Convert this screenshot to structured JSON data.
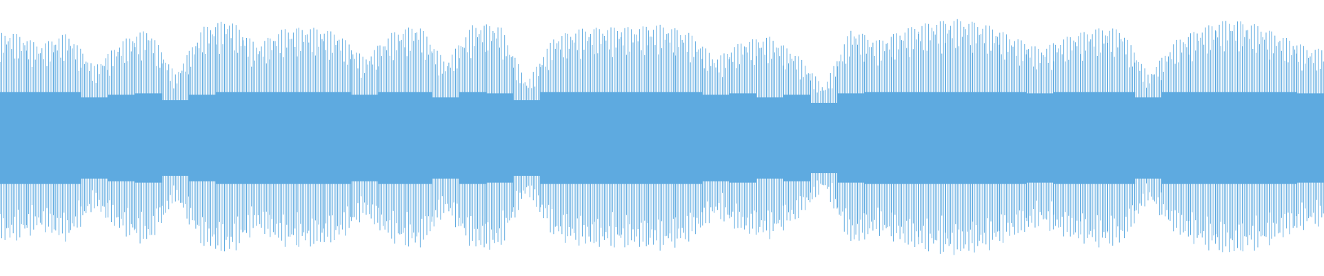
{
  "chart_data": {
    "type": "waveform",
    "color": "#5eaae0",
    "envelope": [
      0.78,
      0.69,
      0.78,
      0.53,
      0.72,
      0.81,
      0.47,
      0.82,
      0.88,
      0.69,
      0.81,
      0.82,
      0.78,
      0.59,
      0.78,
      0.84,
      0.56,
      0.84,
      0.84,
      0.41,
      0.75,
      0.81,
      0.82,
      0.82,
      0.84,
      0.78,
      0.59,
      0.72,
      0.75,
      0.62,
      0.38,
      0.81,
      0.72,
      0.81,
      0.86,
      0.88,
      0.84,
      0.75,
      0.66,
      0.75,
      0.81,
      0.81,
      0.47,
      0.72,
      0.82,
      0.88,
      0.84,
      0.75,
      0.66
    ],
    "core": [
      0.34,
      0.34,
      0.34,
      0.3,
      0.32,
      0.33,
      0.28,
      0.32,
      0.34,
      0.34,
      0.34,
      0.34,
      0.34,
      0.32,
      0.34,
      0.34,
      0.3,
      0.34,
      0.33,
      0.28,
      0.34,
      0.34,
      0.34,
      0.34,
      0.34,
      0.34,
      0.32,
      0.33,
      0.3,
      0.32,
      0.26,
      0.33,
      0.34,
      0.34,
      0.34,
      0.34,
      0.34,
      0.34,
      0.33,
      0.34,
      0.34,
      0.34,
      0.3,
      0.34,
      0.34,
      0.34,
      0.34,
      0.34,
      0.33
    ]
  }
}
